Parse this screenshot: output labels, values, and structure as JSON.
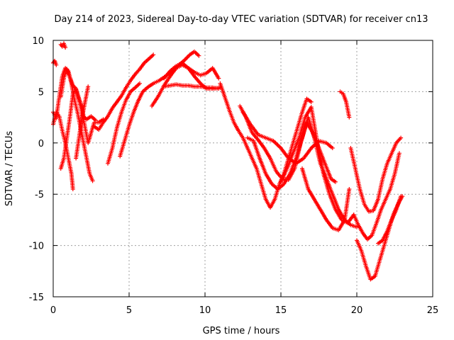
{
  "chart_data": {
    "type": "scatter",
    "title": "Day 214 of 2023, Sidereal Day-to-day VTEC variation (SDTVAR) for receiver cn13",
    "xlabel": "GPS time / hours",
    "ylabel": "SDTVAR / TECUs",
    "xlim": [
      0,
      25
    ],
    "ylim": [
      -15,
      10
    ],
    "xticks": [
      0,
      5,
      10,
      15,
      20,
      25
    ],
    "yticks": [
      -15,
      -10,
      -5,
      0,
      5,
      10
    ],
    "xtick_labels": [
      "0",
      "5",
      "10",
      "15",
      "20",
      "25"
    ],
    "ytick_labels": [
      "-15",
      "-10",
      "-5",
      "0",
      "5",
      "10"
    ],
    "grid": true,
    "marker": "+",
    "color": "#ff0000",
    "series": [
      {
        "name": "s1",
        "x": [
          0.0,
          0.1,
          0.2
        ],
        "y": [
          7.8,
          8.0,
          7.6
        ]
      },
      {
        "name": "s2",
        "x": [
          0.0,
          0.2,
          0.4,
          0.6,
          0.8,
          1.0,
          1.2,
          1.4,
          1.6,
          1.8,
          2.0,
          2.2,
          2.4,
          2.6
        ],
        "y": [
          3.0,
          2.4,
          4.5,
          6.5,
          7.3,
          7.0,
          5.8,
          4.2,
          3.0,
          1.5,
          0.0,
          -1.5,
          -3.0,
          -3.7
        ]
      },
      {
        "name": "s3",
        "x": [
          0.0,
          0.2,
          0.4,
          0.6,
          0.8,
          1.0,
          1.2,
          1.3
        ],
        "y": [
          1.8,
          3.0,
          2.6,
          1.2,
          0.0,
          -1.5,
          -3.0,
          -4.5
        ]
      },
      {
        "name": "s4",
        "x": [
          0.5,
          0.6,
          0.7,
          0.8
        ],
        "y": [
          9.6,
          9.4,
          9.7,
          9.3
        ]
      },
      {
        "name": "s5",
        "x": [
          0.5,
          0.7,
          0.9,
          1.1,
          1.3,
          1.5,
          1.7,
          1.9,
          2.1,
          2.3,
          2.5,
          2.7,
          3.0,
          3.3
        ],
        "y": [
          -2.5,
          -1.5,
          0.5,
          2.5,
          4.8,
          5.2,
          4.2,
          3.0,
          1.5,
          0.0,
          1.0,
          2.0,
          2.0,
          2.3
        ]
      },
      {
        "name": "s6",
        "x": [
          0.5,
          0.7,
          0.9,
          1.1,
          1.3,
          1.5,
          1.7,
          1.9,
          2.0,
          2.2,
          2.5,
          2.8
        ],
        "y": [
          4.5,
          6.3,
          7.2,
          6.4,
          5.6,
          5.3,
          4.3,
          3.5,
          2.6,
          2.3,
          2.6,
          2.2
        ]
      },
      {
        "name": "s7",
        "x": [
          1.5,
          1.7,
          1.9,
          2.1,
          2.3
        ],
        "y": [
          -1.5,
          0.5,
          2.5,
          4.0,
          5.5
        ]
      },
      {
        "name": "s8",
        "x": [
          2.7,
          3.0,
          3.3,
          3.6,
          3.9,
          4.2,
          4.5,
          4.8,
          5.1,
          5.4,
          5.7,
          6.0,
          6.3,
          6.6
        ],
        "y": [
          1.6,
          1.3,
          2.0,
          2.6,
          3.4,
          4.0,
          4.6,
          5.4,
          6.1,
          6.7,
          7.2,
          7.8,
          8.2,
          8.6
        ]
      },
      {
        "name": "s9",
        "x": [
          3.6,
          3.9,
          4.2,
          4.5,
          4.8,
          5.1,
          5.4,
          5.7
        ],
        "y": [
          -2.0,
          -0.5,
          1.5,
          3.0,
          4.2,
          5.0,
          5.4,
          5.8
        ]
      },
      {
        "name": "s10",
        "x": [
          4.4,
          4.7,
          5.0,
          5.3,
          5.6,
          5.9,
          6.2,
          6.6,
          7.0,
          7.4,
          7.8,
          8.2,
          8.6,
          9.0,
          9.3,
          9.6
        ],
        "y": [
          -1.3,
          0.2,
          1.7,
          3.0,
          4.1,
          5.0,
          5.4,
          5.8,
          6.1,
          6.5,
          7.0,
          7.5,
          8.0,
          8.6,
          8.9,
          8.5
        ]
      },
      {
        "name": "s11",
        "x": [
          6.5,
          6.9,
          7.3,
          7.7,
          8.1,
          8.5,
          8.9,
          9.3,
          9.7,
          10.1,
          10.5,
          10.9
        ],
        "y": [
          3.6,
          4.5,
          5.6,
          6.5,
          7.3,
          7.6,
          7.3,
          6.9,
          6.6,
          6.8,
          7.3,
          6.3
        ]
      },
      {
        "name": "s12",
        "x": [
          7.3,
          7.7,
          8.1,
          8.5,
          8.9,
          9.3,
          9.7,
          10.1,
          10.5,
          10.9
        ],
        "y": [
          5.5,
          5.6,
          5.7,
          5.6,
          5.6,
          5.5,
          5.5,
          5.4,
          5.4,
          5.3
        ]
      },
      {
        "name": "s13",
        "x": [
          7.3,
          7.7,
          8.1,
          8.5,
          8.9,
          9.3,
          9.7,
          10.1,
          10.6,
          11.0
        ],
        "y": [
          6.3,
          7.0,
          7.5,
          7.8,
          7.3,
          6.5,
          5.8,
          5.3,
          5.3,
          5.4
        ]
      },
      {
        "name": "s14",
        "x": [
          11.0,
          11.3,
          11.6,
          11.9,
          12.2,
          12.5,
          12.8,
          13.1,
          13.4,
          13.7,
          14.0,
          14.3,
          14.6,
          14.9,
          15.2,
          15.5,
          15.8,
          16.1,
          16.4,
          16.7,
          17.0
        ],
        "y": [
          5.8,
          4.5,
          3.2,
          2.0,
          1.2,
          0.5,
          -0.5,
          -1.5,
          -2.5,
          -4.0,
          -5.5,
          -6.3,
          -5.5,
          -4.0,
          -3.0,
          -1.5,
          0.0,
          1.5,
          3.0,
          4.3,
          4.0
        ]
      },
      {
        "name": "s15",
        "x": [
          12.3,
          12.7,
          13.1,
          13.5,
          13.9,
          14.3,
          14.7,
          15.1,
          15.5,
          15.9,
          16.3,
          16.7,
          17.1,
          17.5,
          17.9,
          18.3,
          18.6
        ],
        "y": [
          3.6,
          2.5,
          1.0,
          0.3,
          -0.5,
          -1.5,
          -2.8,
          -3.5,
          -3.6,
          -2.5,
          0.0,
          2.0,
          1.0,
          -0.5,
          -2.0,
          -3.5,
          -3.8
        ]
      },
      {
        "name": "s16",
        "x": [
          12.8,
          13.2,
          13.6,
          14.0,
          14.4,
          14.8,
          15.2,
          15.6,
          16.0,
          16.4,
          16.8,
          17.2,
          17.6,
          18.0,
          18.4,
          18.8,
          19.2,
          19.6,
          20.0
        ],
        "y": [
          0.5,
          0.2,
          -1.5,
          -3.0,
          -4.0,
          -4.5,
          -4.0,
          -3.0,
          -1.5,
          0.5,
          2.5,
          0.5,
          -2.0,
          -3.5,
          -5.0,
          -6.5,
          -7.5,
          -8.0,
          -8.2
        ]
      },
      {
        "name": "s17",
        "x": [
          12.5,
          13.0,
          13.5,
          14.0,
          14.5,
          15.0,
          15.5,
          16.0,
          16.5,
          17.0,
          17.5,
          18.0,
          18.4
        ],
        "y": [
          3.0,
          1.8,
          0.8,
          0.5,
          0.2,
          -0.5,
          -1.5,
          -2.0,
          -1.5,
          -0.5,
          0.2,
          0.0,
          -0.5
        ]
      },
      {
        "name": "s18",
        "x": [
          15.0,
          15.4,
          15.8,
          16.2,
          16.6,
          17.0,
          17.4,
          17.8,
          18.2,
          18.6,
          19.0,
          19.4,
          19.8
        ],
        "y": [
          -3.8,
          -2.5,
          -1.0,
          0.5,
          2.5,
          3.5,
          0.0,
          -3.0,
          -5.0,
          -6.5,
          -7.5,
          -7.8,
          -7.0
        ]
      },
      {
        "name": "s19",
        "x": [
          16.4,
          16.8,
          17.2,
          17.6,
          18.0,
          18.4,
          18.8,
          19.2,
          19.5
        ],
        "y": [
          -2.5,
          -4.5,
          -5.5,
          -6.5,
          -7.5,
          -8.3,
          -8.5,
          -7.5,
          -4.5
        ]
      },
      {
        "name": "s20",
        "x": [
          18.9,
          19.1,
          19.3,
          19.5
        ],
        "y": [
          5.0,
          4.8,
          4.0,
          2.5
        ]
      },
      {
        "name": "s21",
        "x": [
          19.6,
          19.9,
          20.2,
          20.5,
          20.8,
          21.1,
          21.4,
          21.7,
          22.0,
          22.3,
          22.6,
          22.9
        ],
        "y": [
          -0.5,
          -2.5,
          -4.5,
          -6.0,
          -6.7,
          -6.6,
          -5.5,
          -3.5,
          -2.0,
          -1.0,
          0.0,
          0.5
        ]
      },
      {
        "name": "s22",
        "x": [
          19.8,
          20.1,
          20.4,
          20.7,
          21.0,
          21.3,
          21.6,
          21.9,
          22.2,
          22.5,
          22.8
        ],
        "y": [
          -7.0,
          -8.0,
          -8.8,
          -9.4,
          -9.0,
          -7.8,
          -6.5,
          -5.5,
          -4.5,
          -3.0,
          -1.0
        ]
      },
      {
        "name": "s23",
        "x": [
          20.0,
          20.3,
          20.6,
          20.9,
          21.2,
          21.5,
          21.8,
          22.1,
          22.4,
          22.7,
          23.0
        ],
        "y": [
          -9.5,
          -10.5,
          -12.0,
          -13.3,
          -13.0,
          -11.5,
          -10.0,
          -8.5,
          -7.0,
          -6.0,
          -5.2
        ]
      },
      {
        "name": "s24",
        "x": [
          21.4,
          21.7,
          22.0,
          22.3,
          22.6,
          22.9
        ],
        "y": [
          -9.8,
          -9.5,
          -8.6,
          -7.5,
          -6.5,
          -5.2
        ]
      }
    ]
  }
}
